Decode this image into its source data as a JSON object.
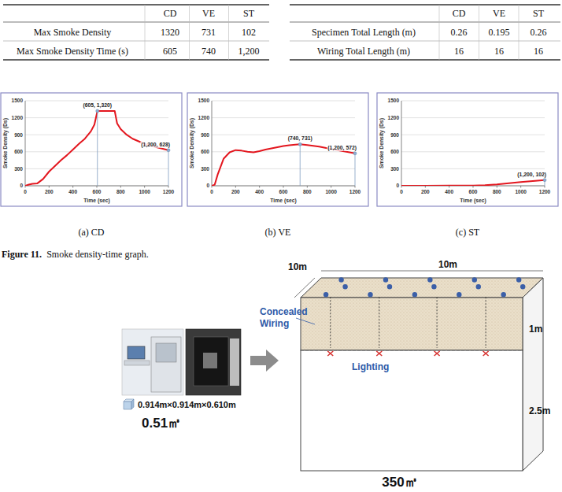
{
  "tables": [
    {
      "columns": [
        "CD",
        "VE",
        "ST"
      ],
      "rows": [
        {
          "label": "Max Smoke Density",
          "cells": [
            "1320",
            "731",
            "102"
          ]
        },
        {
          "label": "Max Smoke Density Time (s)",
          "cells": [
            "605",
            "740",
            "1,200"
          ]
        }
      ]
    },
    {
      "columns": [
        "CD",
        "VE",
        "ST"
      ],
      "rows": [
        {
          "label": "Specimen Total Length (m)",
          "cells": [
            "0.26",
            "0.195",
            "0.26"
          ]
        },
        {
          "label": "Wiring Total Length (m)",
          "cells": [
            "16",
            "16",
            "16"
          ]
        }
      ]
    }
  ],
  "chart_data": [
    {
      "type": "line",
      "caption": "(a) CD",
      "xlabel": "Time (sec)",
      "ylabel": "Smoke Density (Ds)",
      "x": [
        0,
        30,
        60,
        100,
        150,
        200,
        250,
        300,
        350,
        400,
        450,
        500,
        550,
        580,
        605,
        650,
        700,
        750,
        770,
        800,
        850,
        900,
        1000,
        1100,
        1200
      ],
      "values": [
        0,
        20,
        35,
        40,
        120,
        250,
        350,
        450,
        540,
        640,
        740,
        830,
        960,
        1080,
        1320,
        1320,
        1320,
        1320,
        1100,
        1000,
        900,
        830,
        740,
        680,
        628
      ],
      "color": "#e3161e",
      "xlim": [
        0,
        1200
      ],
      "ylim": [
        0,
        1500
      ],
      "xticks": [
        0,
        200,
        400,
        600,
        800,
        1000,
        1200
      ],
      "yticks": [
        0,
        300,
        600,
        900,
        1200,
        1500
      ],
      "grid": true,
      "annotations": [
        {
          "x": 605,
          "y": 1320,
          "label": "(605, 1,320)"
        },
        {
          "x": 1200,
          "y": 628,
          "label": "(1,200, 628)"
        }
      ]
    },
    {
      "type": "line",
      "caption": "(b) VE",
      "xlabel": "Time (sec)",
      "ylabel": "Smoke Density (Ds)",
      "x": [
        0,
        25,
        50,
        100,
        150,
        200,
        250,
        300,
        350,
        400,
        450,
        500,
        550,
        600,
        650,
        700,
        740,
        800,
        900,
        1000,
        1100,
        1200
      ],
      "values": [
        0,
        20,
        200,
        480,
        590,
        630,
        620,
        600,
        590,
        610,
        640,
        660,
        680,
        700,
        715,
        725,
        731,
        720,
        690,
        650,
        610,
        572
      ],
      "color": "#e3161e",
      "xlim": [
        0,
        1200
      ],
      "ylim": [
        0,
        1500
      ],
      "xticks": [
        0,
        200,
        400,
        600,
        800,
        1000,
        1200
      ],
      "yticks": [
        0,
        300,
        600,
        900,
        1200,
        1500
      ],
      "grid": true,
      "annotations": [
        {
          "x": 740,
          "y": 731,
          "label": "(740, 731)"
        },
        {
          "x": 1200,
          "y": 572,
          "label": "(1,200, 572)"
        }
      ]
    },
    {
      "type": "line",
      "caption": "(c) ST",
      "xlabel": "Time (sec)",
      "ylabel": "Smoke Density (Ds)",
      "x": [
        0,
        200,
        400,
        600,
        700,
        800,
        900,
        1000,
        1100,
        1200
      ],
      "values": [
        0,
        0,
        2,
        5,
        10,
        25,
        45,
        65,
        85,
        102
      ],
      "color": "#e3161e",
      "xlim": [
        0,
        1200
      ],
      "ylim": [
        0,
        1500
      ],
      "xticks": [
        0,
        200,
        400,
        600,
        800,
        1000,
        1200
      ],
      "yticks": [
        0,
        300,
        600,
        900,
        1200,
        1500
      ],
      "grid": true,
      "annotations": [
        {
          "x": 1200,
          "y": 102,
          "label": "(1,200, 102)"
        }
      ]
    }
  ],
  "figure_caption": {
    "number": "Figure 11.",
    "text": "Smoke density-time graph."
  },
  "diagram": {
    "chamber_dimensions": "0.914m×0.914m×0.610m",
    "chamber_volume": "0.51㎥",
    "room_width": "10m",
    "room_depth": "10m",
    "ceiling_height": "1m",
    "room_height": "2.5m",
    "wiring_label": "Concealed Wiring",
    "lighting_label": "Lighting",
    "room_volume": "350㎥"
  }
}
